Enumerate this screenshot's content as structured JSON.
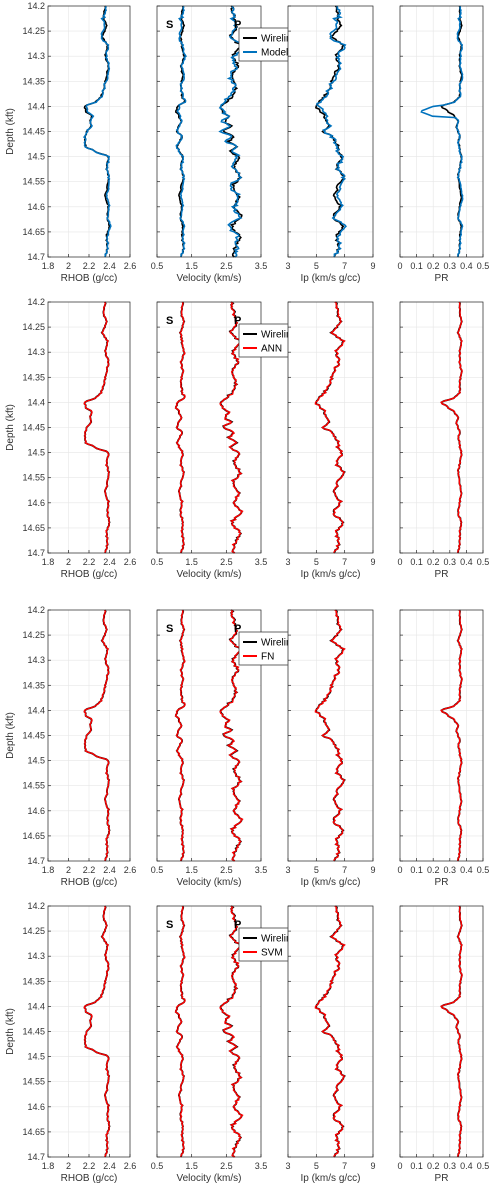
{
  "chart_data": {
    "type": "line",
    "y_axis": {
      "label": "Depth (kft)",
      "range": [
        14.2,
        14.7
      ],
      "ticks": [
        14.2,
        14.25,
        14.3,
        14.35,
        14.4,
        14.45,
        14.5,
        14.55,
        14.6,
        14.65,
        14.7
      ],
      "tick_labels": [
        "14.2",
        "14.25",
        "14.3",
        "14.35",
        "14.4",
        "14.45",
        "14.5",
        "14.55",
        "14.6",
        "14.65",
        "14.7"
      ],
      "direction": "down"
    },
    "columns": [
      {
        "id": "rhob",
        "xlabel": "RHOB (g/cc)",
        "xlim": [
          1.8,
          2.6
        ],
        "ticks": [
          1.8,
          2.0,
          2.2,
          2.4,
          2.6
        ],
        "tick_labels": [
          "1.8",
          "2",
          "2.2",
          "2.4",
          "2.6"
        ]
      },
      {
        "id": "velocity",
        "xlabel": "Velocity (km/s)",
        "xlim": [
          0.5,
          3.5
        ],
        "ticks": [
          0.5,
          1.5,
          2.5,
          3.5
        ],
        "tick_labels": [
          "0.5",
          "1.5",
          "2.5",
          "3.5"
        ],
        "annotations": [
          {
            "text": "S",
            "x": 0.5,
            "depth": 14.225
          },
          {
            "text": "P",
            "x": 2.52,
            "depth": 14.225
          }
        ]
      },
      {
        "id": "ip",
        "xlabel": "Ip (km/s g/cc)",
        "xlim": [
          3,
          9
        ],
        "ticks": [
          3,
          5,
          7,
          9
        ],
        "tick_labels": [
          "3",
          "5",
          "7",
          "9"
        ]
      },
      {
        "id": "pr",
        "xlabel": "PR",
        "xlim": [
          0,
          0.5
        ],
        "ticks": [
          0,
          0.1,
          0.2,
          0.3,
          0.4,
          0.5
        ],
        "tick_labels": [
          "0",
          "0.1",
          "0.2",
          "0.3",
          "0.4",
          "0.5"
        ]
      }
    ],
    "grid": true,
    "legend_position": "top-right of velocity panel",
    "reference_color": "#000000",
    "rows": [
      {
        "legend": [
          "Wireline",
          "Model"
        ],
        "reference_name": "Wireline",
        "predicted_name": "Model",
        "predicted_color": "#0072BD",
        "style": "model"
      },
      {
        "legend": [
          "Wireline",
          "ANN"
        ],
        "reference_name": "Wireline",
        "predicted_name": "ANN",
        "predicted_color": "#FF0000",
        "style": "close"
      },
      {
        "legend": [
          "Wireline",
          "FN"
        ],
        "reference_name": "Wireline",
        "predicted_name": "FN",
        "predicted_color": "#FF0000",
        "style": "close"
      },
      {
        "legend": [
          "Wireline",
          "SVM"
        ],
        "reference_name": "Wireline",
        "predicted_name": "SVM",
        "predicted_color": "#FF0000",
        "style": "close"
      }
    ],
    "profiles": {
      "depth": [
        14.2,
        14.22,
        14.24,
        14.26,
        14.28,
        14.3,
        14.32,
        14.34,
        14.36,
        14.38,
        14.39,
        14.4,
        14.41,
        14.42,
        14.43,
        14.44,
        14.45,
        14.46,
        14.47,
        14.48,
        14.49,
        14.5,
        14.52,
        14.54,
        14.56,
        14.58,
        14.6,
        14.62,
        14.64,
        14.66,
        14.68,
        14.7
      ],
      "rhob": [
        2.36,
        2.34,
        2.37,
        2.33,
        2.38,
        2.36,
        2.39,
        2.37,
        2.35,
        2.32,
        2.27,
        2.16,
        2.17,
        2.23,
        2.21,
        2.22,
        2.18,
        2.16,
        2.16,
        2.17,
        2.26,
        2.39,
        2.37,
        2.39,
        2.38,
        2.36,
        2.39,
        2.38,
        2.4,
        2.37,
        2.38,
        2.36
      ],
      "vs": [
        1.25,
        1.2,
        1.27,
        1.18,
        1.22,
        1.28,
        1.2,
        1.24,
        1.19,
        1.22,
        1.3,
        1.1,
        1.05,
        1.14,
        1.2,
        1.12,
        1.08,
        1.22,
        1.15,
        1.09,
        1.14,
        1.24,
        1.18,
        1.26,
        1.2,
        1.15,
        1.22,
        1.18,
        1.25,
        1.22,
        1.27,
        1.2
      ],
      "vp": [
        2.65,
        2.72,
        2.8,
        2.62,
        2.88,
        2.7,
        2.82,
        2.64,
        2.78,
        2.68,
        2.52,
        2.35,
        2.42,
        2.58,
        2.46,
        2.63,
        2.4,
        2.7,
        2.58,
        2.8,
        2.62,
        2.85,
        2.72,
        2.9,
        2.68,
        2.85,
        2.74,
        2.92,
        2.66,
        2.88,
        2.75,
        2.7
      ],
      "ip": [
        6.4,
        6.5,
        6.7,
        6.1,
        6.9,
        6.4,
        6.6,
        6.2,
        6.0,
        5.6,
        5.2,
        5.0,
        5.3,
        5.6,
        5.7,
        5.9,
        5.5,
        6.1,
        6.3,
        6.6,
        6.5,
        6.8,
        6.4,
        6.9,
        6.5,
        6.3,
        6.7,
        6.2,
        6.9,
        6.4,
        6.6,
        6.3
      ],
      "pr": [
        0.36,
        0.36,
        0.37,
        0.35,
        0.37,
        0.36,
        0.36,
        0.37,
        0.36,
        0.36,
        0.33,
        0.25,
        0.29,
        0.33,
        0.35,
        0.34,
        0.35,
        0.36,
        0.35,
        0.36,
        0.36,
        0.37,
        0.36,
        0.35,
        0.36,
        0.37,
        0.36,
        0.35,
        0.37,
        0.36,
        0.36,
        0.35
      ]
    }
  }
}
